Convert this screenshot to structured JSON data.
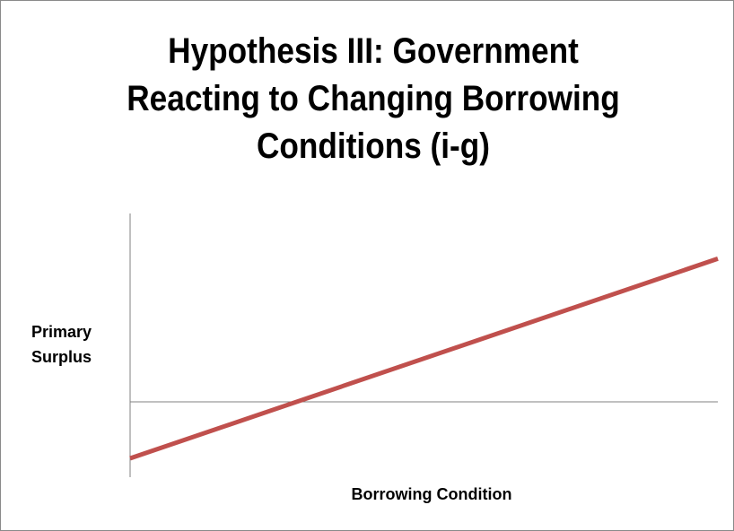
{
  "title": {
    "lines": [
      "Hypothesis III: Government",
      "Reacting to Changing Borrowing",
      "Conditions (i-g)"
    ]
  },
  "chart_data": {
    "type": "line",
    "title": "Hypothesis III: Government Reacting to Changing Borrowing Conditions (i-g)",
    "xlabel": "Borrowing Condition",
    "ylabel": "Primary Surplus",
    "ylabel_lines": [
      "Primary",
      "Surplus"
    ],
    "axes": {
      "x_axis_at_zero": true,
      "x_ticks": false,
      "y_ticks": false,
      "grid": false
    },
    "ylim": [
      -0.4,
      1.0
    ],
    "xlim": [
      0,
      1
    ],
    "series": [
      {
        "color": "#c0504d",
        "points": [
          {
            "x": 0.0,
            "y": -0.3
          },
          {
            "x": 1.0,
            "y": 0.76
          }
        ]
      }
    ]
  },
  "colors": {
    "line": "#c0504d",
    "axis": "#808080",
    "text": "#000000",
    "border": "#8a8a8a"
  }
}
